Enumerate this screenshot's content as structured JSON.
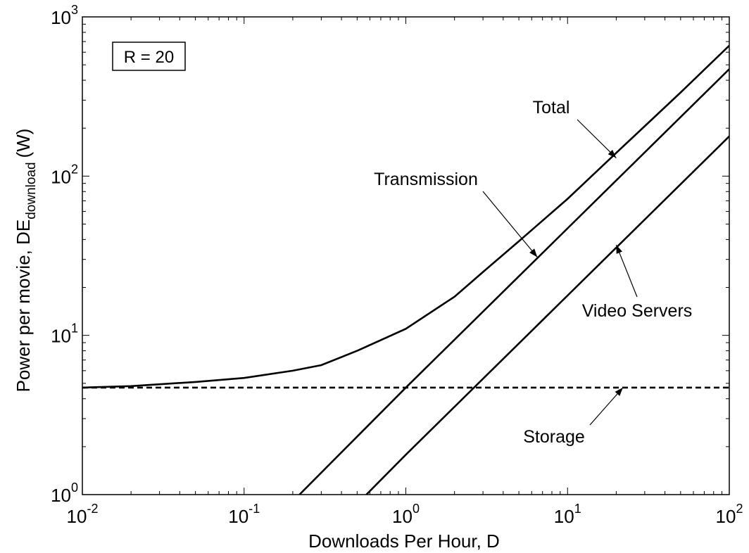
{
  "chart_data": {
    "type": "line",
    "x_scale": "log",
    "y_scale": "log",
    "xlim": [
      0.01,
      100
    ],
    "ylim": [
      1,
      1000
    ],
    "xlabel": "Downloads Per Hour, D",
    "ylabel": "Power per movie, DE",
    "ylabel_subscript": "download",
    "ylabel_unit": "(W)",
    "x_ticks": [
      {
        "base": "10",
        "exp": "-2"
      },
      {
        "base": "10",
        "exp": "-1"
      },
      {
        "base": "10",
        "exp": "0"
      },
      {
        "base": "10",
        "exp": "1"
      },
      {
        "base": "10",
        "exp": "2"
      }
    ],
    "y_ticks": [
      {
        "base": "10",
        "exp": "0"
      },
      {
        "base": "10",
        "exp": "1"
      },
      {
        "base": "10",
        "exp": "2"
      },
      {
        "base": "10",
        "exp": "3"
      }
    ],
    "inset_label": "R = 20",
    "grid": false,
    "series": [
      {
        "name": "Total",
        "style": "solid",
        "points": [
          [
            0.01,
            4.7
          ],
          [
            0.02,
            4.8
          ],
          [
            0.05,
            5.1
          ],
          [
            0.1,
            5.4
          ],
          [
            0.2,
            6.0
          ],
          [
            0.3,
            6.5
          ],
          [
            0.5,
            8.0
          ],
          [
            1,
            11.0
          ],
          [
            2,
            17.5
          ],
          [
            3,
            25
          ],
          [
            5,
            39
          ],
          [
            10,
            72
          ],
          [
            20,
            140
          ],
          [
            50,
            335
          ],
          [
            100,
            660
          ]
        ]
      },
      {
        "name": "Transmission",
        "style": "solid",
        "points": [
          [
            0.22,
            1.0
          ],
          [
            1,
            4.7
          ],
          [
            10,
            47
          ],
          [
            100,
            470
          ]
        ]
      },
      {
        "name": "Video Servers",
        "style": "solid",
        "points": [
          [
            0.57,
            1.0
          ],
          [
            1,
            1.78
          ],
          [
            10,
            17.8
          ],
          [
            100,
            178
          ]
        ]
      },
      {
        "name": "Storage",
        "style": "dashed",
        "points": [
          [
            0.01,
            4.7
          ],
          [
            100,
            4.7
          ]
        ]
      }
    ],
    "annotations": [
      {
        "text": "Total",
        "arrow_to": [
          20,
          130
        ]
      },
      {
        "text": "Transmission",
        "arrow_to": [
          6.5,
          31
        ]
      },
      {
        "text": "Video Servers",
        "arrow_to": [
          20,
          37
        ]
      },
      {
        "text": "Storage",
        "arrow_to": [
          22,
          4.7
        ]
      }
    ]
  }
}
